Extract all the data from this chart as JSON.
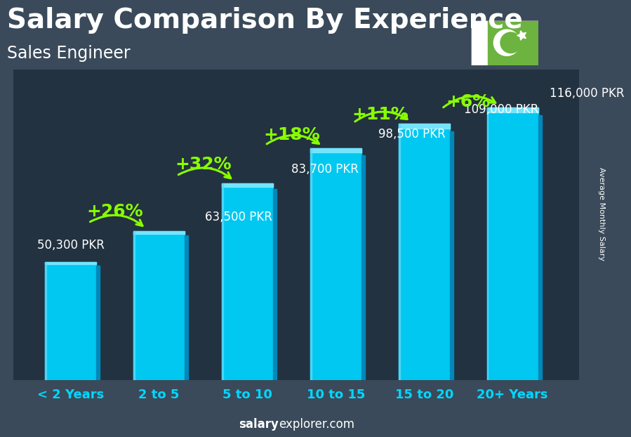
{
  "title": "Salary Comparison By Experience",
  "subtitle": "Sales Engineer",
  "ylabel": "Average Monthly Salary",
  "categories": [
    "< 2 Years",
    "2 to 5",
    "5 to 10",
    "10 to 15",
    "15 to 20",
    "20+ Years"
  ],
  "values": [
    50300,
    63500,
    83700,
    98500,
    109000,
    116000
  ],
  "labels": [
    "50,300 PKR",
    "63,500 PKR",
    "83,700 PKR",
    "98,500 PKR",
    "109,000 PKR",
    "116,000 PKR"
  ],
  "pct_changes": [
    "+26%",
    "+32%",
    "+18%",
    "+11%",
    "+6%"
  ],
  "bar_color_main": "#00C8F0",
  "bar_color_dark": "#0088BB",
  "bar_color_top": "#80E8FF",
  "pct_color": "#88FF00",
  "label_color": "#FFFFFF",
  "title_color": "#FFFFFF",
  "bg_color": "#3a4a5a",
  "footer_salary_color": "#FFFFFF",
  "footer_explorer_color": "#FFFFFF",
  "arrow_color": "#88FF00",
  "title_fontsize": 28,
  "subtitle_fontsize": 17,
  "category_fontsize": 13,
  "label_fontsize": 12,
  "pct_fontsize": 18,
  "flag_green": "#6DB33F",
  "ylabel_fontsize": 8
}
